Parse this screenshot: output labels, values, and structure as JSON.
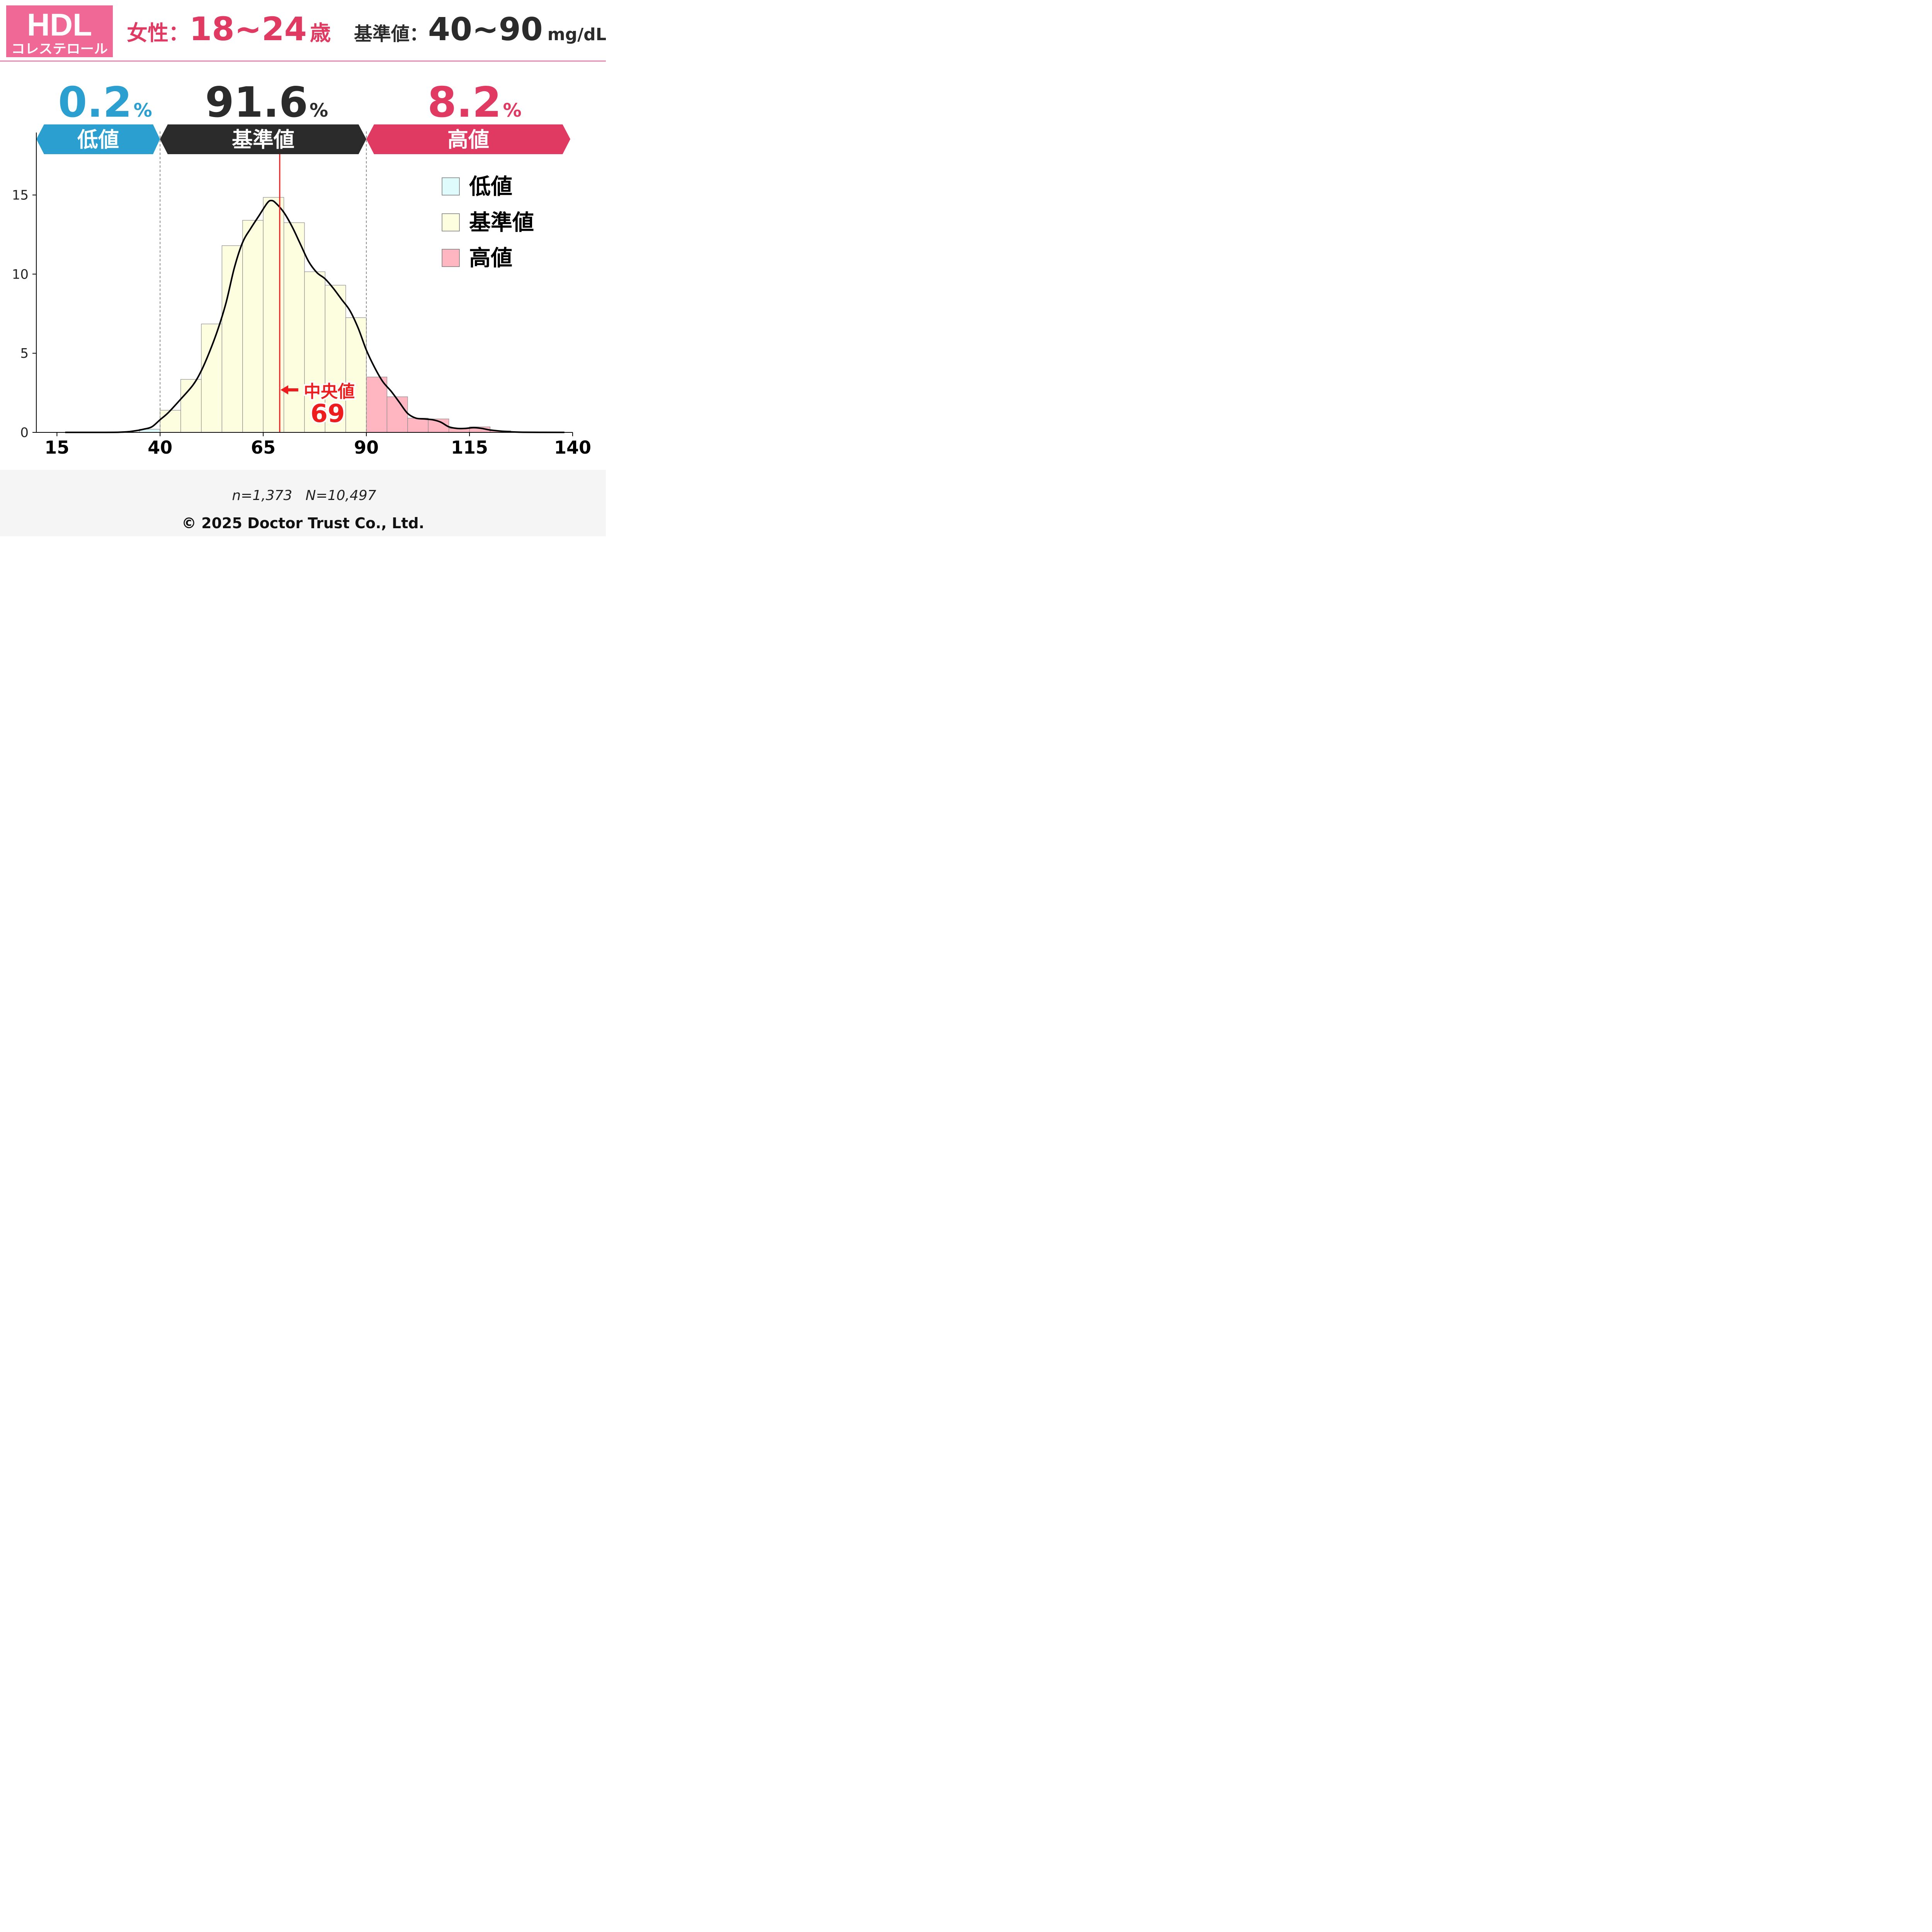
{
  "header": {
    "badge_title": "HDL",
    "badge_subtitle": "コレステロール",
    "sex_label": "女性：",
    "age_range": "18~24",
    "age_unit": "歳",
    "ref_label": "基準値：",
    "ref_range": "40~90",
    "ref_unit": "mg/dL"
  },
  "summary": [
    {
      "percent": "0.2",
      "unit": "%",
      "category": "低値",
      "color": "#2a9fd0"
    },
    {
      "percent": "91.6",
      "unit": "%",
      "category": "基準値",
      "color": "#2b2b2b"
    },
    {
      "percent": "8.2",
      "unit": "%",
      "category": "高値",
      "color": "#e03a62"
    }
  ],
  "legend": [
    {
      "label": "低値",
      "color": "#e0fbfc"
    },
    {
      "label": "基準値",
      "color": "#fdfde0"
    },
    {
      "label": "高値",
      "color": "#ffb6c1"
    }
  ],
  "median": {
    "label": "中央値",
    "value": 69,
    "color": "#ee1c1c"
  },
  "footer": {
    "sample": "n=1,373   N=10,497",
    "copyright": "© 2025 Doctor Trust Co., Ltd."
  },
  "colors": {
    "accent_pink": "#f06996",
    "title_pink": "#e03a62",
    "dark": "#2b2b2b",
    "blue": "#2a9fd0",
    "footer_bg": "#f5f5f5"
  },
  "chart_data": {
    "type": "bar",
    "x_ticks": [
      15,
      40,
      65,
      90,
      115,
      140
    ],
    "y_ticks": [
      0,
      5,
      10,
      15
    ],
    "xlim": [
      10,
      140
    ],
    "ylim": [
      0,
      18.8
    ],
    "thresholds": [
      40,
      90
    ],
    "bin_width": 5,
    "bins": [
      {
        "x0": 35,
        "x1": 40,
        "value": 0.2,
        "category": "low"
      },
      {
        "x0": 40,
        "x1": 45,
        "value": 1.4,
        "category": "normal"
      },
      {
        "x0": 45,
        "x1": 50,
        "value": 3.35,
        "category": "normal"
      },
      {
        "x0": 50,
        "x1": 55,
        "value": 6.85,
        "category": "normal"
      },
      {
        "x0": 55,
        "x1": 60,
        "value": 11.8,
        "category": "normal"
      },
      {
        "x0": 60,
        "x1": 65,
        "value": 13.4,
        "category": "normal"
      },
      {
        "x0": 65,
        "x1": 70,
        "value": 14.85,
        "category": "normal"
      },
      {
        "x0": 70,
        "x1": 75,
        "value": 13.25,
        "category": "normal"
      },
      {
        "x0": 75,
        "x1": 80,
        "value": 10.15,
        "category": "normal"
      },
      {
        "x0": 80,
        "x1": 85,
        "value": 9.3,
        "category": "normal"
      },
      {
        "x0": 85,
        "x1": 90,
        "value": 7.25,
        "category": "normal"
      },
      {
        "x0": 90,
        "x1": 95,
        "value": 3.5,
        "category": "high"
      },
      {
        "x0": 95,
        "x1": 100,
        "value": 2.25,
        "category": "high"
      },
      {
        "x0": 100,
        "x1": 105,
        "value": 0.9,
        "category": "high"
      },
      {
        "x0": 105,
        "x1": 110,
        "value": 0.85,
        "category": "high"
      },
      {
        "x0": 110,
        "x1": 115,
        "value": 0.25,
        "category": "high"
      },
      {
        "x0": 115,
        "x1": 120,
        "value": 0.35,
        "category": "high"
      },
      {
        "x0": 120,
        "x1": 125,
        "value": 0.1,
        "category": "high"
      }
    ],
    "density": [
      [
        17,
        0
      ],
      [
        30,
        0.01
      ],
      [
        34,
        0.1
      ],
      [
        36,
        0.2
      ],
      [
        38,
        0.35
      ],
      [
        40,
        0.8
      ],
      [
        42,
        1.25
      ],
      [
        45,
        2.1
      ],
      [
        48,
        3.0
      ],
      [
        50,
        3.9
      ],
      [
        52,
        5.1
      ],
      [
        54,
        6.5
      ],
      [
        56,
        8.2
      ],
      [
        58,
        10.4
      ],
      [
        60,
        12.0
      ],
      [
        62,
        12.9
      ],
      [
        64,
        13.7
      ],
      [
        66,
        14.5
      ],
      [
        67,
        14.65
      ],
      [
        68,
        14.5
      ],
      [
        70,
        13.9
      ],
      [
        72,
        13.0
      ],
      [
        74,
        11.9
      ],
      [
        76,
        10.8
      ],
      [
        78,
        10.1
      ],
      [
        80,
        9.7
      ],
      [
        82,
        9.1
      ],
      [
        84,
        8.4
      ],
      [
        86,
        7.7
      ],
      [
        88,
        6.6
      ],
      [
        90,
        5.2
      ],
      [
        92,
        4.1
      ],
      [
        94,
        3.2
      ],
      [
        96,
        2.6
      ],
      [
        98,
        1.9
      ],
      [
        100,
        1.2
      ],
      [
        102,
        0.9
      ],
      [
        104,
        0.85
      ],
      [
        106,
        0.8
      ],
      [
        108,
        0.65
      ],
      [
        110,
        0.35
      ],
      [
        112,
        0.25
      ],
      [
        114,
        0.25
      ],
      [
        116,
        0.3
      ],
      [
        118,
        0.25
      ],
      [
        120,
        0.15
      ],
      [
        124,
        0.05
      ],
      [
        128,
        0.01
      ],
      [
        138,
        0
      ]
    ]
  }
}
